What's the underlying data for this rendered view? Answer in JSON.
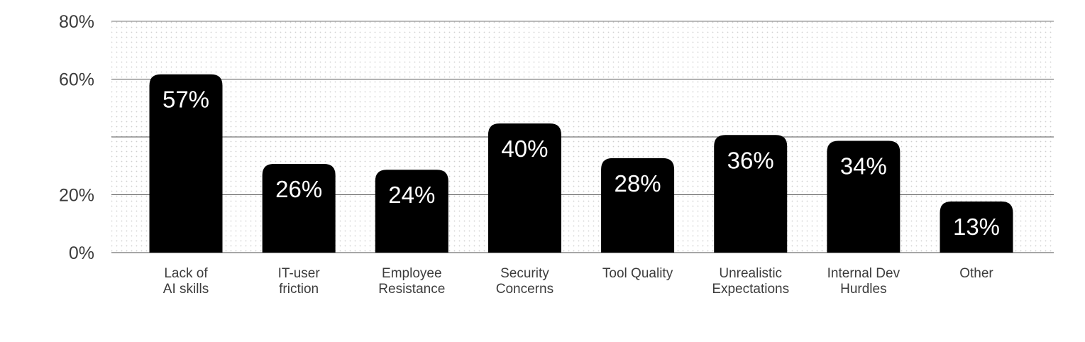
{
  "chart_data": {
    "type": "bar",
    "categories": [
      [
        "Lack of",
        "AI skills"
      ],
      [
        "IT-user",
        "friction"
      ],
      [
        "Employee",
        "Resistance"
      ],
      [
        "Security",
        "Concerns"
      ],
      [
        "Tool Quality"
      ],
      [
        "Unrealistic",
        "Expectations"
      ],
      [
        "Internal Dev",
        "Hurdles"
      ],
      [
        "Other"
      ]
    ],
    "values": [
      57,
      26,
      24,
      40,
      28,
      36,
      34,
      13
    ],
    "data_labels": [
      "57%",
      "26%",
      "24%",
      "40%",
      "28%",
      "36%",
      "34%",
      "13%"
    ],
    "yticks": [
      0,
      20,
      40,
      60,
      80
    ],
    "ytick_labels": [
      "0%",
      "20%",
      "",
      "60%",
      "80%"
    ],
    "ylim": [
      0,
      80
    ],
    "grid": true,
    "colors": {
      "bar": "#000000",
      "bar_label": "#ffffff",
      "gridline": "#555555",
      "dots": "#cfcfcf",
      "text": "#3c3c3c"
    }
  }
}
